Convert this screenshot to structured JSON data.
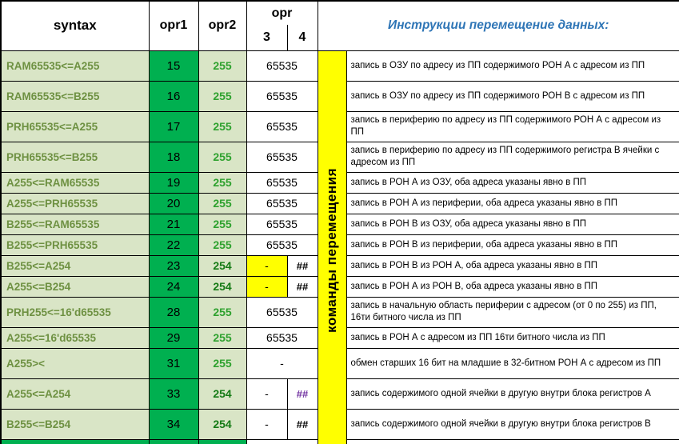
{
  "header": {
    "syntax_label": "syntax",
    "opr1_label": "opr1",
    "opr2_label": "opr2",
    "opr_group_label": "opr",
    "opr3_label": "3",
    "opr4_label": "4",
    "title": "Инструкции перемещение данных:"
  },
  "strip_label": "команды перемещения",
  "colors": {
    "bright_green": "#00B050",
    "pale_green": "#D9E5C6",
    "syntax_green": "#6E9142",
    "value_green": "#2EA12E",
    "value_green_dark": "#157A15",
    "yellow": "#FFFF00",
    "title_blue": "#2E75B6",
    "hash_purple": "#7030A0"
  },
  "rows": [
    {
      "syntax": "RAM65535<=A255",
      "opr1": "15",
      "opr2": "255",
      "operand": "65535",
      "desc": "запись в ОЗУ по адресу из ПП содержимого РОН А с адресом из ПП",
      "two_line": true
    },
    {
      "syntax": "RAM65535<=B255",
      "opr1": "16",
      "opr2": "255",
      "operand": "65535",
      "desc": "запись в ОЗУ по адресу из ПП содержимого РОН В с адресом из ПП",
      "two_line": true
    },
    {
      "syntax": "PRH65535<=A255",
      "opr1": "17",
      "opr2": "255",
      "operand": "65535",
      "desc": "запись в периферию по адресу из ПП содержимого РОН А с адресом из ПП",
      "two_line": true
    },
    {
      "syntax": "PRH65535<=B255",
      "opr1": "18",
      "opr2": "255",
      "operand": "65535",
      "desc": "запись в периферию по адресу из ПП содержимого регистра В ячейки с адресом из ПП",
      "two_line": true
    },
    {
      "syntax": "A255<=RAM65535",
      "opr1": "19",
      "opr2": "255",
      "operand": "65535",
      "desc": "запись в РОН А из ОЗУ, оба адреса указаны явно в ПП"
    },
    {
      "syntax": "A255<=PRH65535",
      "opr1": "20",
      "opr2": "255",
      "operand": "65535",
      "desc": "запись в РОН А из периферии, оба адреса указаны явно в ПП"
    },
    {
      "syntax": "B255<=RAM65535",
      "opr1": "21",
      "opr2": "255",
      "operand": "65535",
      "desc": "запись в РОН В из ОЗУ, оба адреса указаны явно в ПП"
    },
    {
      "syntax": "B255<=PRH65535",
      "opr1": "22",
      "opr2": "255",
      "operand": "65535",
      "desc": "запись в РОН В из периферии, оба адреса указаны явно в ПП"
    },
    {
      "syntax": "B255<=A254",
      "opr1": "23",
      "opr2": "254",
      "opr2_dark": true,
      "opr3": "-",
      "opr3_yellow": true,
      "opr4": "##",
      "desc": "запись в РОН В из РОН А, оба адреса указаны явно в ПП"
    },
    {
      "syntax": "A255<=B254",
      "opr1": "24",
      "opr2": "254",
      "opr2_dark": true,
      "opr3": "-",
      "opr3_yellow": true,
      "opr4": "##",
      "desc": "запись в РОН А из РОН В, оба адреса указаны явно в ПП"
    },
    {
      "syntax": "PRH255<=16'd65535",
      "opr1": "28",
      "opr2": "255",
      "operand": "65535",
      "desc": "запись в начальную область периферии с адресом (от 0 по 255) из ПП, 16ти битного числа из ПП",
      "two_line": true
    },
    {
      "syntax": "A255<=16'd65535",
      "opr1": "29",
      "opr2": "255",
      "operand": "65535",
      "desc": "запись в РОН А с адресом из ПП 16ти битного числа из ПП"
    },
    {
      "syntax": "A255><",
      "opr1": "31",
      "opr2": "255",
      "operand": "-",
      "desc": "обмен старших 16 бит на младшие в 32-битном РОН А с адресом из ПП",
      "two_line": true
    },
    {
      "syntax": "A255<=A254",
      "opr1": "33",
      "opr2": "254",
      "opr2_dark": true,
      "opr3": "-",
      "opr4": "##",
      "opr4_purple": true,
      "desc": "запись содержимого одной ячейки в другую внутри блока регистров А",
      "two_line": true
    },
    {
      "syntax": "B255<=B254",
      "opr1": "34",
      "opr2": "254",
      "opr2_dark": true,
      "opr3": "-",
      "opr4": "##",
      "desc": "запись содержимого одной ячейки в другую внутри блока регистров В",
      "two_line": true
    }
  ]
}
